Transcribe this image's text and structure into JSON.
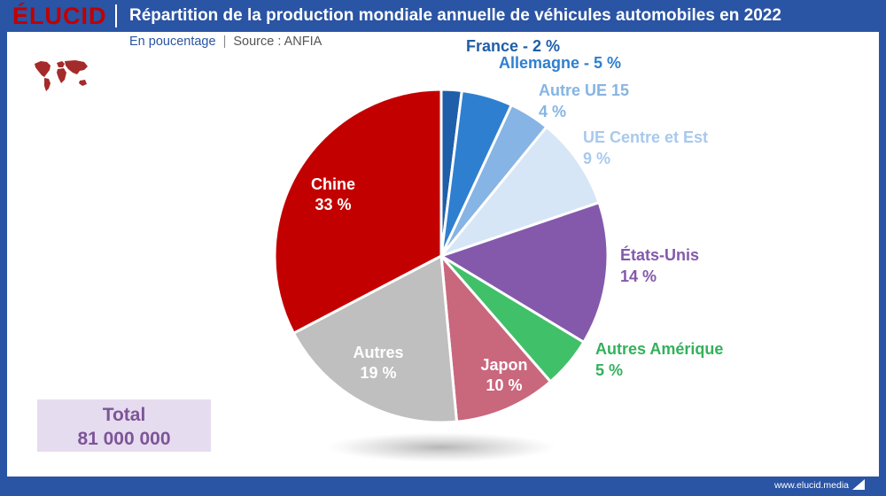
{
  "header": {
    "logo_prefix": "ÉLUCID",
    "title": "Répartition de la production mondiale annuelle de véhicules automobiles en 2022"
  },
  "subtitle": {
    "unit": "En poucentage",
    "separator": "|",
    "source": "Source : ANFIA"
  },
  "total": {
    "label": "Total",
    "value": "81 000 000"
  },
  "footer": {
    "site": "www.elucid.media"
  },
  "chart_data": {
    "type": "pie",
    "title": "Répartition de la production mondiale annuelle de véhicules automobiles en 2022",
    "unit": "%",
    "start": "12 o'clock, clockwise",
    "slices": [
      {
        "label": "France",
        "value": 2,
        "display": "France - 2 %",
        "color": "#1f5ea8",
        "label_color": "#1f5ea8"
      },
      {
        "label": "Allemagne",
        "value": 5,
        "display": "Allemagne - 5 %",
        "color": "#2f7fd0",
        "label_color": "#2f7fd0"
      },
      {
        "label": "Autre UE 15",
        "value": 4,
        "line1": "Autre UE 15",
        "line2": "4 %",
        "color": "#86b4e4",
        "label_color": "#86b4e4"
      },
      {
        "label": "UE Centre et Est",
        "value": 9,
        "line1": "UE Centre et Est",
        "line2": "9 %",
        "color": "#d6e6f6",
        "label_color": "#a9c9ec"
      },
      {
        "label": "États-Unis",
        "value": 14,
        "line1": "États-Unis",
        "line2": "14 %",
        "color": "#8459ab",
        "label_color": "#8459ab"
      },
      {
        "label": "Autres Amérique",
        "value": 5,
        "line1": "Autres Amérique",
        "line2": "5 %",
        "color": "#41c06a",
        "label_color": "#33b15c"
      },
      {
        "label": "Japon",
        "value": 10,
        "line1": "Japon",
        "line2": "10 %",
        "color": "#c9677d",
        "label_color": "#ffffff"
      },
      {
        "label": "Autres",
        "value": 19,
        "line1": "Autres",
        "line2": "19 %",
        "color": "#bfbfbf",
        "label_color": "#ffffff"
      },
      {
        "label": "Chine",
        "value": 33,
        "line1": "Chine",
        "line2": "33 %",
        "color": "#c30000",
        "label_color": "#ffffff"
      }
    ]
  }
}
